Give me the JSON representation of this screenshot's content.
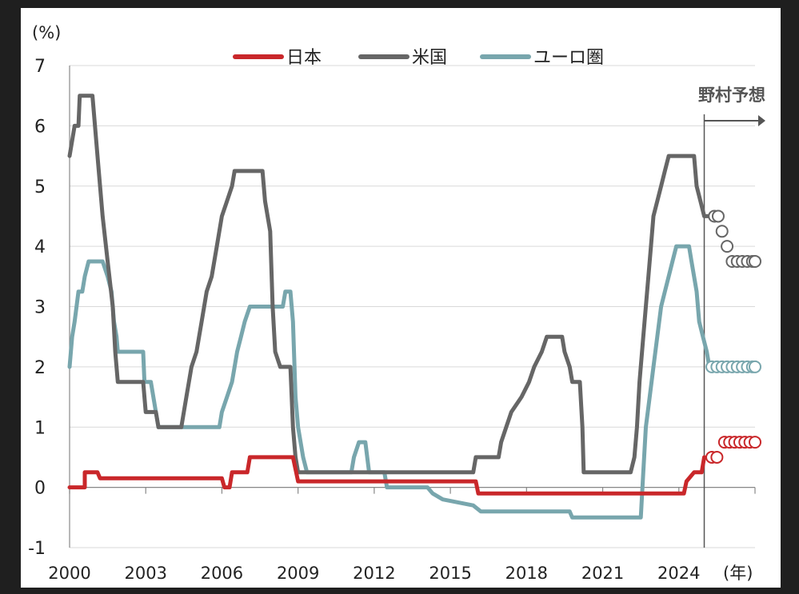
{
  "chart_data": {
    "type": "line",
    "title": "",
    "ylabel": "(%)",
    "xlabel": "(年)",
    "ylim": [
      -1,
      7
    ],
    "yticks": [
      -1,
      0,
      1,
      2,
      3,
      4,
      5,
      6,
      7
    ],
    "xlim": [
      2000,
      2027
    ],
    "xticks": [
      2000,
      2003,
      2006,
      2009,
      2012,
      2015,
      2018,
      2021,
      2024
    ],
    "grid": true,
    "legend": "top",
    "annotation": {
      "text": "野村予想",
      "x": 2025
    },
    "series": [
      {
        "name": "日本",
        "color": "#c9272a",
        "values": [
          [
            2000.0,
            0.0
          ],
          [
            2000.6,
            0.0
          ],
          [
            2000.6,
            0.25
          ],
          [
            2001.1,
            0.25
          ],
          [
            2001.2,
            0.15
          ],
          [
            2006.0,
            0.15
          ],
          [
            2006.1,
            0.0
          ],
          [
            2006.3,
            0.0
          ],
          [
            2006.4,
            0.25
          ],
          [
            2007.0,
            0.25
          ],
          [
            2007.1,
            0.5
          ],
          [
            2008.8,
            0.5
          ],
          [
            2008.9,
            0.3
          ],
          [
            2009.0,
            0.1
          ],
          [
            2016.0,
            0.1
          ],
          [
            2016.1,
            -0.1
          ],
          [
            2024.2,
            -0.1
          ],
          [
            2024.3,
            0.1
          ],
          [
            2024.6,
            0.25
          ],
          [
            2024.9,
            0.25
          ],
          [
            2025.0,
            0.5
          ]
        ],
        "forecast": [
          [
            2025.3,
            0.5
          ],
          [
            2025.5,
            0.5
          ],
          [
            2025.8,
            0.75
          ],
          [
            2026.0,
            0.75
          ],
          [
            2026.2,
            0.75
          ],
          [
            2026.4,
            0.75
          ],
          [
            2026.6,
            0.75
          ],
          [
            2026.8,
            0.75
          ],
          [
            2027.0,
            0.75
          ]
        ]
      },
      {
        "name": "米国",
        "color": "#666666",
        "values": [
          [
            2000.0,
            5.5
          ],
          [
            2000.2,
            6.0
          ],
          [
            2000.35,
            6.0
          ],
          [
            2000.4,
            6.5
          ],
          [
            2000.9,
            6.5
          ],
          [
            2001.1,
            5.5
          ],
          [
            2001.3,
            4.5
          ],
          [
            2001.5,
            3.75
          ],
          [
            2001.7,
            3.0
          ],
          [
            2001.8,
            2.25
          ],
          [
            2001.9,
            1.75
          ],
          [
            2002.9,
            1.75
          ],
          [
            2003.0,
            1.25
          ],
          [
            2003.4,
            1.25
          ],
          [
            2003.5,
            1.0
          ],
          [
            2004.4,
            1.0
          ],
          [
            2004.6,
            1.5
          ],
          [
            2004.8,
            2.0
          ],
          [
            2005.0,
            2.25
          ],
          [
            2005.2,
            2.75
          ],
          [
            2005.4,
            3.25
          ],
          [
            2005.6,
            3.5
          ],
          [
            2005.8,
            4.0
          ],
          [
            2006.0,
            4.5
          ],
          [
            2006.2,
            4.75
          ],
          [
            2006.4,
            5.0
          ],
          [
            2006.5,
            5.25
          ],
          [
            2007.6,
            5.25
          ],
          [
            2007.7,
            4.75
          ],
          [
            2007.9,
            4.25
          ],
          [
            2008.0,
            3.0
          ],
          [
            2008.1,
            2.25
          ],
          [
            2008.3,
            2.0
          ],
          [
            2008.7,
            2.0
          ],
          [
            2008.8,
            1.0
          ],
          [
            2008.9,
            0.5
          ],
          [
            2009.0,
            0.25
          ],
          [
            2015.9,
            0.25
          ],
          [
            2016.0,
            0.5
          ],
          [
            2016.9,
            0.5
          ],
          [
            2017.0,
            0.75
          ],
          [
            2017.2,
            1.0
          ],
          [
            2017.4,
            1.25
          ],
          [
            2017.8,
            1.5
          ],
          [
            2018.1,
            1.75
          ],
          [
            2018.3,
            2.0
          ],
          [
            2018.6,
            2.25
          ],
          [
            2018.8,
            2.5
          ],
          [
            2019.4,
            2.5
          ],
          [
            2019.5,
            2.25
          ],
          [
            2019.7,
            2.0
          ],
          [
            2019.8,
            1.75
          ],
          [
            2020.1,
            1.75
          ],
          [
            2020.2,
            1.0
          ],
          [
            2020.25,
            0.25
          ],
          [
            2022.1,
            0.25
          ],
          [
            2022.25,
            0.5
          ],
          [
            2022.35,
            1.0
          ],
          [
            2022.45,
            1.75
          ],
          [
            2022.6,
            2.5
          ],
          [
            2022.75,
            3.25
          ],
          [
            2022.9,
            4.0
          ],
          [
            2023.0,
            4.5
          ],
          [
            2023.15,
            4.75
          ],
          [
            2023.3,
            5.0
          ],
          [
            2023.45,
            5.25
          ],
          [
            2023.6,
            5.5
          ],
          [
            2024.6,
            5.5
          ],
          [
            2024.7,
            5.0
          ],
          [
            2024.85,
            4.75
          ],
          [
            2025.0,
            4.5
          ],
          [
            2025.3,
            4.5
          ]
        ],
        "forecast": [
          [
            2025.4,
            4.5
          ],
          [
            2025.55,
            4.5
          ],
          [
            2025.7,
            4.25
          ],
          [
            2025.9,
            4.0
          ],
          [
            2026.1,
            3.75
          ],
          [
            2026.3,
            3.75
          ],
          [
            2026.5,
            3.75
          ],
          [
            2026.7,
            3.75
          ],
          [
            2026.9,
            3.75
          ],
          [
            2027.0,
            3.75
          ]
        ]
      },
      {
        "name": "ユーロ圏",
        "color": "#78a6ad",
        "values": [
          [
            2000.0,
            2.0
          ],
          [
            2000.1,
            2.5
          ],
          [
            2000.2,
            2.75
          ],
          [
            2000.35,
            3.25
          ],
          [
            2000.5,
            3.25
          ],
          [
            2000.6,
            3.5
          ],
          [
            2000.75,
            3.75
          ],
          [
            2001.3,
            3.75
          ],
          [
            2001.5,
            3.5
          ],
          [
            2001.65,
            3.25
          ],
          [
            2001.75,
            2.75
          ],
          [
            2001.85,
            2.5
          ],
          [
            2001.9,
            2.25
          ],
          [
            2002.9,
            2.25
          ],
          [
            2002.95,
            1.75
          ],
          [
            2003.2,
            1.75
          ],
          [
            2003.4,
            1.25
          ],
          [
            2003.5,
            1.0
          ],
          [
            2005.9,
            1.0
          ],
          [
            2006.0,
            1.25
          ],
          [
            2006.2,
            1.5
          ],
          [
            2006.4,
            1.75
          ],
          [
            2006.5,
            2.0
          ],
          [
            2006.6,
            2.25
          ],
          [
            2006.75,
            2.5
          ],
          [
            2006.9,
            2.75
          ],
          [
            2007.1,
            3.0
          ],
          [
            2007.5,
            3.0
          ],
          [
            2008.4,
            3.0
          ],
          [
            2008.5,
            3.25
          ],
          [
            2008.7,
            3.25
          ],
          [
            2008.8,
            2.75
          ],
          [
            2008.9,
            1.5
          ],
          [
            2009.0,
            1.0
          ],
          [
            2009.2,
            0.5
          ],
          [
            2009.35,
            0.25
          ],
          [
            2011.1,
            0.25
          ],
          [
            2011.2,
            0.5
          ],
          [
            2011.4,
            0.75
          ],
          [
            2011.65,
            0.75
          ],
          [
            2011.8,
            0.25
          ],
          [
            2012.4,
            0.25
          ],
          [
            2012.5,
            0.0
          ],
          [
            2014.1,
            0.0
          ],
          [
            2014.3,
            -0.1
          ],
          [
            2014.7,
            -0.2
          ],
          [
            2015.9,
            -0.3
          ],
          [
            2016.2,
            -0.4
          ],
          [
            2019.7,
            -0.4
          ],
          [
            2019.8,
            -0.5
          ],
          [
            2022.5,
            -0.5
          ],
          [
            2022.6,
            0.25
          ],
          [
            2022.7,
            1.0
          ],
          [
            2022.85,
            1.5
          ],
          [
            2023.0,
            2.0
          ],
          [
            2023.15,
            2.5
          ],
          [
            2023.3,
            3.0
          ],
          [
            2023.45,
            3.25
          ],
          [
            2023.6,
            3.5
          ],
          [
            2023.75,
            3.75
          ],
          [
            2023.9,
            4.0
          ],
          [
            2024.4,
            4.0
          ],
          [
            2024.5,
            3.75
          ],
          [
            2024.6,
            3.5
          ],
          [
            2024.7,
            3.25
          ],
          [
            2024.8,
            2.75
          ],
          [
            2024.95,
            2.5
          ],
          [
            2025.1,
            2.25
          ],
          [
            2025.2,
            2.0
          ]
        ],
        "forecast": [
          [
            2025.3,
            2.0
          ],
          [
            2025.5,
            2.0
          ],
          [
            2025.7,
            2.0
          ],
          [
            2025.9,
            2.0
          ],
          [
            2026.1,
            2.0
          ],
          [
            2026.3,
            2.0
          ],
          [
            2026.5,
            2.0
          ],
          [
            2026.7,
            2.0
          ],
          [
            2026.9,
            2.0
          ],
          [
            2027.0,
            2.0
          ]
        ]
      }
    ]
  }
}
